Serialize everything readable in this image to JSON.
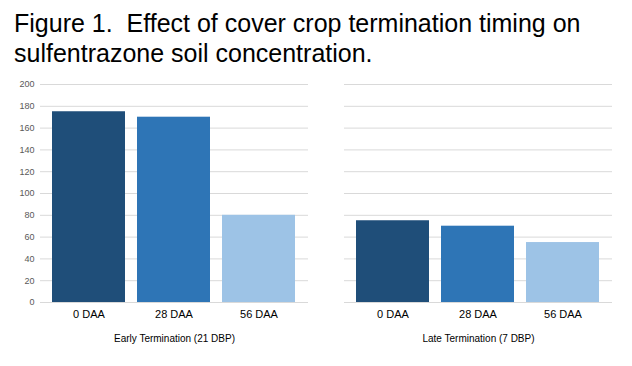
{
  "chart_data": {
    "type": "bar",
    "title": "Figure 1.  Effect of cover crop termination timing on sulfentrazone soil concentration.",
    "categories": [
      "Early Termination (21 DBP)",
      "Late Termination (7 DBP)"
    ],
    "series": [
      {
        "name": "0 DAA",
        "color": "#1f4e79",
        "values": [
          175,
          75
        ]
      },
      {
        "name": "28 DAA",
        "color": "#2e75b6",
        "values": [
          170,
          70
        ]
      },
      {
        "name": "56 DAA",
        "color": "#9dc3e6",
        "values": [
          80,
          55
        ]
      }
    ],
    "ylim": [
      0,
      200
    ],
    "yticks": [
      0,
      20,
      40,
      60,
      80,
      100,
      120,
      140,
      160,
      180,
      200
    ],
    "grid": true
  }
}
